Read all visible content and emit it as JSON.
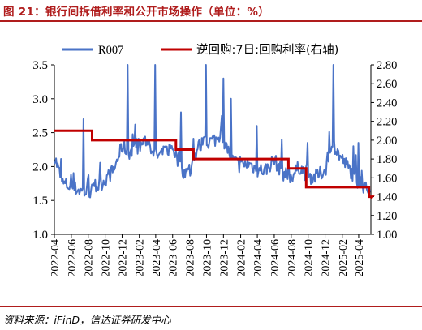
{
  "title": "图 21：银行间拆借利率和公开市场操作（单位：%）",
  "source": "资料来源：iFinD，信达证券研发中心",
  "colors": {
    "title": "#b01d1d",
    "r007": "#4a73c7",
    "reverse_repo": "#c00000"
  },
  "chart_data": {
    "type": "line",
    "title": "",
    "x_ticks": [
      "2022-04",
      "2022-06",
      "2022-08",
      "2022-10",
      "2022-12",
      "2023-02",
      "2023-04",
      "2023-06",
      "2023-08",
      "2023-10",
      "2023-12",
      "2024-02",
      "2024-04",
      "2024-06",
      "2024-08",
      "2024-10",
      "2024-12",
      "2025-02",
      "2025-04"
    ],
    "y_left": {
      "ylim": [
        1.0,
        3.5
      ],
      "ticks": [
        "1.0",
        "1.5",
        "2.0",
        "2.5",
        "3.0",
        "3.5"
      ]
    },
    "y_right": {
      "ylim": [
        1.0,
        2.8
      ],
      "ticks": [
        "1.00",
        "1.20",
        "1.40",
        "1.60",
        "1.80",
        "2.00",
        "2.20",
        "2.40",
        "2.60",
        "2.80"
      ]
    },
    "legend_position": "top",
    "grid": false,
    "series": [
      {
        "name": "R007",
        "axis": "left",
        "x": [
          "2022-04-01",
          "2022-05-01",
          "2022-06-01",
          "2022-07-01",
          "2022-08-01",
          "2022-09-01",
          "2022-10-01",
          "2022-11-01",
          "2022-12-01",
          "2023-01-01",
          "2023-02-01",
          "2023-03-01",
          "2023-04-01",
          "2023-05-01",
          "2023-06-01",
          "2023-07-01",
          "2023-08-01",
          "2023-09-01",
          "2023-10-01",
          "2023-11-01",
          "2023-12-01",
          "2024-01-01",
          "2024-02-01",
          "2024-03-01",
          "2024-04-01",
          "2024-05-01",
          "2024-06-01",
          "2024-07-01",
          "2024-08-01",
          "2024-09-01",
          "2024-10-01",
          "2024-11-01",
          "2024-12-01",
          "2025-01-01",
          "2025-02-01",
          "2025-03-01",
          "2025-04-01",
          "2025-05-01"
        ],
        "values": [
          2.15,
          1.75,
          1.7,
          1.65,
          1.6,
          1.7,
          1.8,
          1.95,
          2.3,
          2.2,
          2.3,
          2.4,
          2.15,
          2.2,
          2.3,
          1.95,
          1.9,
          2.3,
          2.35,
          2.4,
          2.4,
          2.1,
          2.0,
          2.05,
          1.95,
          1.95,
          2.1,
          1.9,
          1.85,
          2.0,
          1.85,
          1.85,
          1.95,
          2.3,
          2.1,
          1.95,
          1.75,
          1.65
        ],
        "peaks": [
          {
            "x": "2022-07-15",
            "value": 2.7
          },
          {
            "x": "2022-12-20",
            "value": 3.5
          },
          {
            "x": "2023-03-30",
            "value": 3.5
          },
          {
            "x": "2023-06-30",
            "value": 2.8
          },
          {
            "x": "2023-09-28",
            "value": 3.5
          },
          {
            "x": "2023-11-30",
            "value": 3.3
          },
          {
            "x": "2023-12-29",
            "value": 3.0
          },
          {
            "x": "2024-03-29",
            "value": 2.6
          },
          {
            "x": "2024-06-28",
            "value": 2.4
          },
          {
            "x": "2024-09-30",
            "value": 2.35
          },
          {
            "x": "2024-12-31",
            "value": 3.5
          },
          {
            "x": "2025-03-31",
            "value": 2.35
          }
        ]
      },
      {
        "name": "逆回购:7日:回购利率(右轴)",
        "axis": "right",
        "x": [
          "2022-04-01",
          "2022-08-15",
          "2023-06-13",
          "2023-08-15",
          "2024-07-22",
          "2024-09-24",
          "2025-05-08",
          "2025-05-20"
        ],
        "values": [
          2.1,
          2.0,
          1.9,
          1.8,
          1.7,
          1.5,
          1.4,
          1.4
        ]
      }
    ]
  }
}
